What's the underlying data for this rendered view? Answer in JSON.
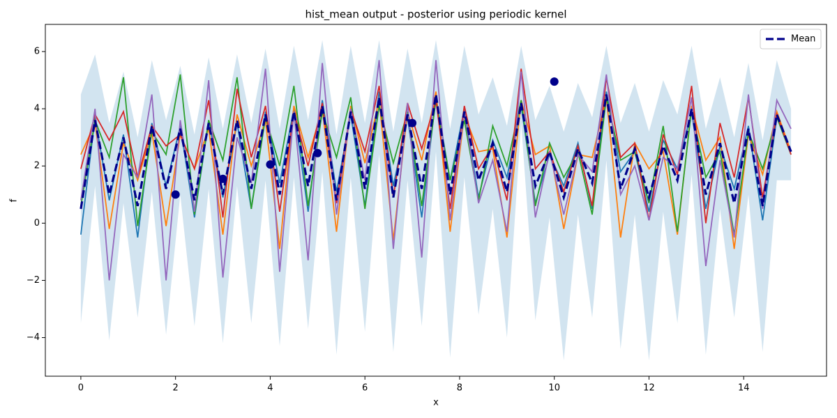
{
  "chart_data": {
    "type": "line",
    "title": "hist_mean output - posterior using periodic kernel",
    "xlabel": "x",
    "ylabel": "f",
    "xlim": [
      -0.75,
      15.75
    ],
    "ylim": [
      -5.35,
      6.95
    ],
    "xticks": [
      0,
      2,
      4,
      6,
      8,
      10,
      12,
      14
    ],
    "yticks": [
      {
        "value": -4,
        "label": "−4"
      },
      {
        "value": -2,
        "label": "−2"
      },
      0,
      2,
      4,
      6
    ],
    "legend": "upper right",
    "x": [
      0,
      0.3,
      0.6,
      0.9,
      1.2,
      1.5,
      1.8,
      2.1,
      2.4,
      2.7,
      3,
      3.3,
      3.6,
      3.9,
      4.2,
      4.5,
      4.8,
      5.1,
      5.4,
      5.7,
      6,
      6.3,
      6.6,
      6.9,
      7.2,
      7.5,
      7.8,
      8.1,
      8.4,
      8.7,
      9,
      9.3,
      9.6,
      9.9,
      10.2,
      10.5,
      10.8,
      11.1,
      11.4,
      11.7,
      12,
      12.3,
      12.6,
      12.9,
      13.2,
      13.5,
      13.8,
      14.1,
      14.4,
      14.7,
      15
    ],
    "band": {
      "color": "#1f77b4",
      "opacity": 0.2,
      "upper": [
        4.5,
        5.9,
        3.5,
        5.3,
        3.0,
        5.7,
        3.6,
        5.5,
        3.1,
        5.8,
        3.3,
        5.9,
        3.5,
        6.1,
        3.3,
        6.2,
        3.6,
        6.4,
        3.1,
        6.2,
        3.5,
        6.4,
        3.2,
        6.1,
        3.5,
        6.4,
        3.3,
        6.2,
        3.8,
        5.1,
        3.4,
        6.2,
        3.6,
        4.8,
        3.2,
        4.9,
        3.7,
        6.2,
        3.5,
        4.9,
        3.2,
        5.0,
        3.8,
        6.2,
        3.3,
        5.1,
        3.0,
        5.6,
        2.9,
        5.7,
        4.0
      ],
      "lower": [
        -3.5,
        1.3,
        -4.1,
        0.7,
        -3.3,
        1.1,
        -3.9,
        1.0,
        -3.6,
        1.2,
        -4.2,
        1.3,
        -3.5,
        1.5,
        -4.3,
        1.6,
        -3.7,
        1.8,
        -4.6,
        1.6,
        -3.8,
        2.4,
        -4.5,
        1.5,
        -3.6,
        2.5,
        -4.7,
        1.6,
        -3.2,
        0.5,
        -4.0,
        3.5,
        -3.4,
        0.2,
        -4.8,
        0.3,
        -3.3,
        2.2,
        -4.4,
        0.3,
        -4.8,
        0.4,
        -3.5,
        1.7,
        -4.6,
        0.5,
        -3.3,
        1.0,
        -4.5,
        1.5,
        1.5
      ]
    },
    "samples": [
      {
        "color": "#1f77b4",
        "values": [
          -0.4,
          3.7,
          0.8,
          3.1,
          -0.5,
          3.5,
          1.3,
          3.4,
          0.2,
          3.6,
          0.9,
          3.5,
          0.5,
          3.9,
          1.4,
          4.0,
          0.4,
          4.3,
          1.1,
          3.8,
          0.6,
          4.6,
          1.3,
          3.7,
          0.2,
          4.4,
          1.5,
          4.0,
          0.9,
          2.9,
          1.6,
          4.1,
          0.7,
          2.4,
          1.3,
          2.8,
          0.5,
          4.6,
          1.8,
          2.5,
          0.4,
          2.9,
          1.9,
          3.9,
          0.5,
          2.7,
          1.2,
          3.4,
          0.1,
          3.7,
          2.5
        ]
      },
      {
        "color": "#ff7f0e",
        "values": [
          2.4,
          3.5,
          -0.2,
          2.8,
          1.5,
          3.2,
          -0.1,
          3.1,
          1.9,
          3.3,
          -0.4,
          3.8,
          2.0,
          3.6,
          -0.9,
          4.1,
          2.3,
          4.0,
          -0.3,
          4.1,
          2.1,
          4.3,
          -0.6,
          3.9,
          2.2,
          4.6,
          -0.3,
          3.8,
          2.5,
          2.6,
          -0.5,
          4.3,
          2.4,
          2.7,
          -0.2,
          2.4,
          2.3,
          4.4,
          -0.5,
          2.8,
          1.9,
          2.5,
          -0.4,
          4.1,
          2.2,
          3.0,
          -0.9,
          3.1,
          1.7,
          3.9,
          2.5
        ]
      },
      {
        "color": "#2ca02c",
        "values": [
          0.6,
          3.6,
          2.3,
          5.1,
          -0.1,
          3.2,
          2.4,
          5.2,
          0.3,
          3.6,
          2.2,
          5.1,
          0.5,
          3.7,
          2.0,
          4.8,
          0.6,
          3.9,
          2.3,
          4.4,
          0.5,
          4.1,
          2.1,
          3.9,
          0.6,
          4.3,
          1.5,
          3.6,
          0.8,
          3.4,
          2.0,
          4.3,
          0.6,
          2.8,
          1.6,
          2.5,
          0.3,
          4.4,
          2.2,
          2.5,
          0.7,
          3.4,
          -0.3,
          4.0,
          1.6,
          2.5,
          -0.4,
          3.2,
          1.9,
          3.7,
          2.4
        ]
      },
      {
        "color": "#d62728",
        "values": [
          1.9,
          3.8,
          2.9,
          3.9,
          1.6,
          3.4,
          2.7,
          3.1,
          1.9,
          4.3,
          0.2,
          4.7,
          2.3,
          4.1,
          0.4,
          3.9,
          2.0,
          4.2,
          0.7,
          4.0,
          2.5,
          4.8,
          0.9,
          4.2,
          2.6,
          4.3,
          0.5,
          4.1,
          1.9,
          2.7,
          0.8,
          5.4,
          1.9,
          2.5,
          1.1,
          2.7,
          0.6,
          5.1,
          2.3,
          2.8,
          0.1,
          3.1,
          1.7,
          4.8,
          0.0,
          3.5,
          1.6,
          4.4,
          0.9,
          3.8,
          2.4
        ]
      },
      {
        "color": "#9467bd",
        "values": [
          0.8,
          4.0,
          -2.0,
          2.4,
          1.6,
          4.5,
          -2.0,
          3.6,
          0.4,
          5.0,
          -1.9,
          3.0,
          1.4,
          5.4,
          -1.7,
          3.9,
          -1.3,
          5.6,
          0.3,
          4.0,
          1.5,
          5.7,
          -0.9,
          4.2,
          -1.2,
          5.7,
          0.1,
          3.9,
          0.7,
          2.2,
          -0.3,
          5.3,
          0.2,
          2.5,
          0.3,
          2.4,
          1.8,
          5.2,
          1.0,
          2.0,
          0.1,
          2.3,
          1.9,
          4.4,
          -1.5,
          2.2,
          -0.5,
          4.5,
          0.5,
          4.3,
          3.3
        ]
      }
    ],
    "series": [
      {
        "name": "Mean",
        "color": "#00008b",
        "dashed": true,
        "values": [
          0.5,
          3.6,
          1.0,
          3.0,
          0.6,
          3.4,
          1.2,
          3.3,
          0.8,
          3.5,
          1.0,
          3.6,
          1.2,
          3.8,
          1.0,
          3.9,
          1.3,
          4.1,
          0.8,
          3.9,
          1.2,
          4.4,
          0.9,
          3.8,
          1.2,
          4.5,
          1.0,
          3.9,
          1.5,
          2.8,
          1.1,
          4.2,
          1.3,
          2.5,
          0.9,
          2.6,
          1.4,
          4.5,
          1.2,
          2.6,
          0.9,
          2.7,
          1.5,
          4.0,
          1.0,
          2.8,
          0.7,
          3.3,
          0.6,
          3.8,
          2.5
        ]
      }
    ],
    "observations": {
      "color": "#00008b",
      "x": [
        2,
        3,
        4,
        5,
        7,
        10
      ],
      "y": [
        1,
        1.55,
        2.05,
        2.45,
        3.5,
        4.95
      ]
    }
  }
}
